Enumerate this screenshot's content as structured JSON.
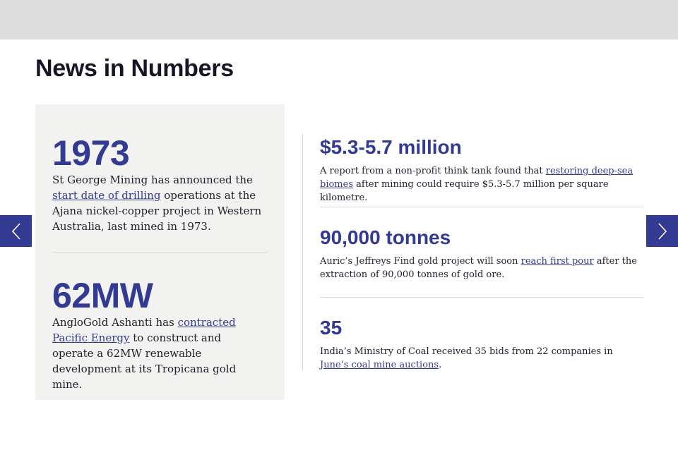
{
  "section_title": "News in Numbers",
  "colors": {
    "accent": "#333a92",
    "card_bg": "#f2f2f0",
    "topbar": "#dcdcdc"
  },
  "left_stats": [
    {
      "figure": "1973",
      "text_before": "St George Mining has announced the ",
      "link_text": "start date of drilling",
      "text_after": " operations at the Ajana nickel-copper project in Western Australia, last mined in 1973."
    },
    {
      "figure": "62MW",
      "text_before": "AngloGold Ashanti has ",
      "link_text": "contracted Pacific Energy",
      "text_after": " to construct and operate a 62MW renewable development at its Tropicana gold mine."
    }
  ],
  "right_stats": [
    {
      "figure": "$5.3-5.7 million",
      "text_before": "A report from a non-profit think tank found that ",
      "link_text": "restoring deep-sea biomes",
      "text_after": " after mining could require $5.3-5.7 million per square kilometre."
    },
    {
      "figure": "90,000 tonnes",
      "text_before": "Auric’s Jeffreys Find gold project will soon ",
      "link_text": "reach first pour",
      "text_after": " after the extraction of 90,000 tonnes of gold ore."
    },
    {
      "figure": "35",
      "text_before": "India’s Ministry of Coal received 35 bids from 22 companies in ",
      "link_text": "June’s coal mine auctions",
      "text_after": "."
    }
  ],
  "nav": {
    "prev_icon": "chevron-left-icon",
    "next_icon": "chevron-right-icon"
  }
}
